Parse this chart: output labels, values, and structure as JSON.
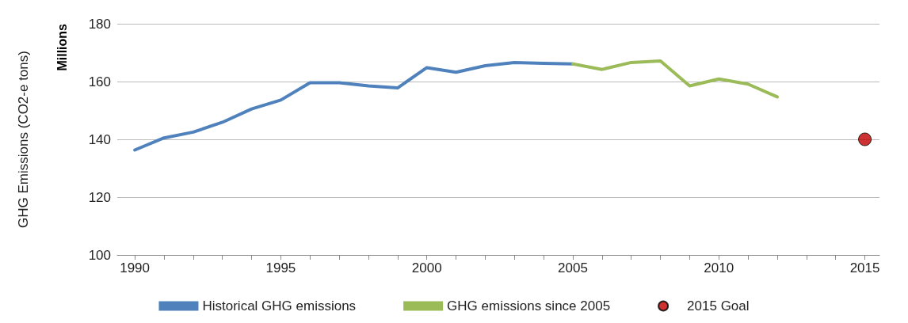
{
  "chart_data": {
    "type": "line",
    "ylabel": "GHG Emissions (CO2-e tons)",
    "annotations": [
      "Millions"
    ],
    "xlim": [
      1989.4,
      2015.5
    ],
    "xticks": [
      1990,
      {
        "value": 1991,
        "label": null
      },
      {
        "value": 1992,
        "label": null
      },
      {
        "value": 1993,
        "label": null
      },
      {
        "value": 1994,
        "label": null
      },
      1995,
      {
        "value": 1996,
        "label": null
      },
      {
        "value": 1997,
        "label": null
      },
      {
        "value": 1998,
        "label": null
      },
      {
        "value": 1999,
        "label": null
      },
      2000,
      {
        "value": 2001,
        "label": null
      },
      {
        "value": 2002,
        "label": null
      },
      {
        "value": 2003,
        "label": null
      },
      {
        "value": 2004,
        "label": null
      },
      2005,
      {
        "value": 2006,
        "label": null
      },
      {
        "value": 2007,
        "label": null
      },
      {
        "value": 2008,
        "label": null
      },
      {
        "value": 2009,
        "label": null
      },
      2010,
      {
        "value": 2011,
        "label": null
      },
      {
        "value": 2012,
        "label": null
      },
      {
        "value": 2013,
        "label": null
      },
      {
        "value": 2014,
        "label": null
      },
      2015
    ],
    "ylim": [
      100,
      180
    ],
    "yticks": [
      100,
      120,
      140,
      160,
      180
    ],
    "grid": "y",
    "legend": "bottom",
    "line_style": "solid",
    "series": [
      {
        "name": "Historical GHG emissions",
        "color": "#4f81bd",
        "x": [
          1990,
          1991,
          1992,
          1993,
          1994,
          1995,
          1996,
          1997,
          1998,
          1999,
          2000,
          2001,
          2002,
          2003,
          2004,
          2005
        ],
        "values": [
          136.3,
          140.5,
          142.5,
          145.9,
          150.5,
          153.6,
          159.6,
          159.6,
          158.5,
          157.8,
          164.8,
          163.2,
          165.5,
          166.6,
          166.3,
          166.1
        ]
      },
      {
        "name": "GHG emissions since 2005",
        "color": "#9bbb59",
        "x": [
          2005,
          2006,
          2007,
          2008,
          2009,
          2010,
          2011,
          2012
        ],
        "values": [
          166.1,
          164.2,
          166.6,
          167.1,
          158.5,
          160.9,
          159.1,
          154.7
        ]
      },
      {
        "name": "2015 Goal",
        "type": "scatter",
        "marker": "circle",
        "color": "#c00000",
        "x": [
          2015
        ],
        "values": [
          140
        ]
      }
    ]
  }
}
